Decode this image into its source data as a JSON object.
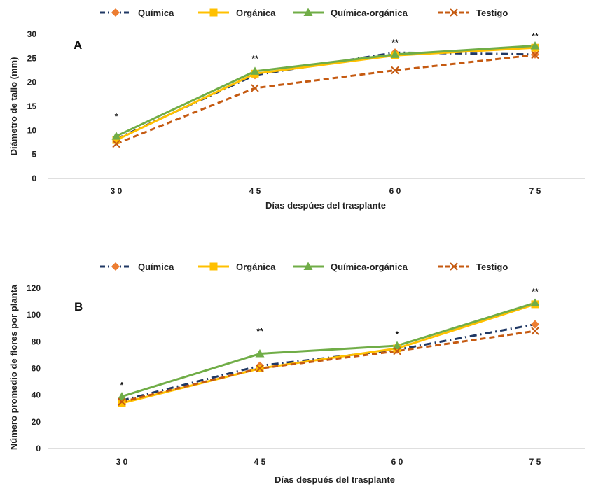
{
  "chart_data": [
    {
      "type": "line",
      "panel_label": "A",
      "xlabel": "Días despúes del trasplante",
      "ylabel": "Diámetro de tallo (mm)",
      "categories": [
        "3 0",
        "4 5",
        "6 0",
        "7 5"
      ],
      "ylim": [
        0,
        30
      ],
      "yticks": [
        "0",
        "5",
        "10",
        "15",
        "20",
        "25",
        "30"
      ],
      "grid": false,
      "legend_position": "top",
      "significance": [
        "*",
        "**",
        "**",
        "**"
      ],
      "series": [
        {
          "name": "Química",
          "color": "#203864",
          "marker_color": "#ED7D31",
          "marker": "diamond",
          "dash": "dash-dot",
          "values": [
            8.2,
            21.5,
            26.2,
            25.8
          ]
        },
        {
          "name": "Orgánica",
          "color": "#FFC000",
          "marker_color": "#FFC000",
          "marker": "square",
          "dash": "solid",
          "values": [
            8.0,
            21.8,
            25.6,
            27.2
          ]
        },
        {
          "name": "Química-orgánica",
          "color": "#70AD47",
          "marker_color": "#70AD47",
          "marker": "triangle",
          "dash": "solid",
          "values": [
            8.8,
            22.3,
            25.8,
            27.6
          ]
        },
        {
          "name": "Testigo",
          "color": "#C55A11",
          "marker_color": "#C55A11",
          "marker": "x",
          "dash": "dash",
          "values": [
            7.2,
            18.8,
            22.5,
            25.7
          ]
        }
      ]
    },
    {
      "type": "line",
      "panel_label": "B",
      "xlabel": "Días después del trasplante",
      "ylabel": "Número promedio de flores por planta",
      "categories": [
        "3 0",
        "4 5",
        "6 0",
        "7 5"
      ],
      "ylim": [
        0,
        120
      ],
      "yticks": [
        "0",
        "20",
        "40",
        "60",
        "80",
        "100",
        "120"
      ],
      "grid": false,
      "legend_position": "top",
      "significance": [
        "*",
        "**",
        "*",
        "**"
      ],
      "series": [
        {
          "name": "Química",
          "color": "#203864",
          "marker_color": "#ED7D31",
          "marker": "diamond",
          "dash": "dash-dot",
          "values": [
            36,
            62,
            74,
            93
          ]
        },
        {
          "name": "Orgánica",
          "color": "#FFC000",
          "marker_color": "#FFC000",
          "marker": "square",
          "dash": "solid",
          "values": [
            34,
            60,
            75,
            108
          ]
        },
        {
          "name": "Química-orgánica",
          "color": "#70AD47",
          "marker_color": "#70AD47",
          "marker": "triangle",
          "dash": "solid",
          "values": [
            39,
            71,
            77,
            109
          ]
        },
        {
          "name": "Testigo",
          "color": "#C55A11",
          "marker_color": "#C55A11",
          "marker": "x",
          "dash": "dash",
          "values": [
            35,
            60,
            73,
            88
          ]
        }
      ]
    }
  ]
}
